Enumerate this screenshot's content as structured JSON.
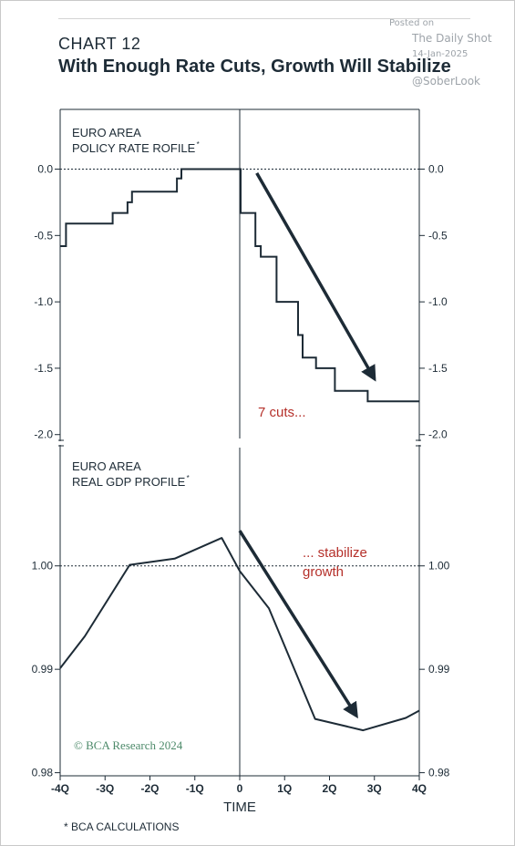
{
  "header": {
    "chart_number": "CHART 12",
    "title": "With Enough Rate Cuts, Growth Will Stabilize"
  },
  "watermark": {
    "posted": "Posted on",
    "source": "The Daily Shot",
    "date": "14-Jan-2025",
    "handle": "@SoberLook"
  },
  "footnote": "* BCA CALCULATIONS",
  "credit": "© BCA Research 2024",
  "colors": {
    "line": "#1d2b36",
    "annotation": "#b5302a",
    "credit": "#4d8a6a"
  },
  "chart_data": [
    {
      "type": "line",
      "panel_label": [
        "EURO AREA",
        "POLICY RATE ROFILE"
      ],
      "footnote_marker": "*",
      "xlabel": "TIME",
      "xlim": [
        -4,
        4
      ],
      "ylim": [
        -2.05,
        0.45
      ],
      "y_ticks": [
        0.0,
        -0.5,
        -1.0,
        -1.5,
        -2.0
      ],
      "y_tick_labels": [
        "0.0",
        "-0.5",
        "-1.0",
        "-1.5",
        "-2.0"
      ],
      "reference_line": 0.0,
      "series": [
        {
          "x": [
            -4.0,
            -3.87,
            -3.87,
            -2.83,
            -2.83,
            -2.5,
            -2.5,
            -2.4,
            -2.4,
            -1.4,
            -1.4,
            -1.3,
            -1.3,
            0.0,
            0.02,
            0.02,
            0.35,
            0.35,
            0.47,
            0.47,
            0.82,
            0.82,
            1.3,
            1.3,
            1.4,
            1.4,
            1.7,
            1.7,
            2.12,
            2.12,
            2.85,
            2.85,
            4.0
          ],
          "y": [
            -0.58,
            -0.58,
            -0.41,
            -0.41,
            -0.33,
            -0.33,
            -0.25,
            -0.25,
            -0.17,
            -0.17,
            -0.07,
            -0.07,
            0.0,
            0.0,
            0.0,
            -0.33,
            -0.33,
            -0.58,
            -0.58,
            -0.66,
            -0.66,
            -1.0,
            -1.0,
            -1.25,
            -1.25,
            -1.42,
            -1.42,
            -1.5,
            -1.5,
            -1.67,
            -1.67,
            -1.75,
            -1.75
          ]
        }
      ],
      "arrow": {
        "from": [
          0.38,
          -0.03
        ],
        "to": [
          3.0,
          -1.58
        ]
      },
      "annotation": "7 cuts..."
    },
    {
      "type": "line",
      "panel_label": [
        "EURO AREA",
        "REAL GDP PROFILE"
      ],
      "footnote_marker": "*",
      "xlabel": "TIME",
      "x_ticks": [
        -4,
        -3,
        -2,
        -1,
        0,
        1,
        2,
        3,
        4
      ],
      "x_tick_labels": [
        "-4Q",
        "-3Q",
        "-2Q",
        "-1Q",
        "0",
        "1Q",
        "2Q",
        "3Q",
        "4Q"
      ],
      "xlim": [
        -4,
        4
      ],
      "ylim": [
        0.9797,
        1.0117
      ],
      "y_ticks": [
        1.0,
        0.99,
        0.98
      ],
      "y_tick_labels": [
        "1.00",
        "0.99",
        "0.98"
      ],
      "reference_line": 1.0,
      "series": [
        {
          "x": [
            -4.0,
            -3.45,
            -2.45,
            -1.45,
            -0.4,
            0.0,
            0.65,
            1.68,
            2.75,
            3.7,
            4.0
          ],
          "y": [
            0.9901,
            0.9932,
            1.0001,
            1.0007,
            1.0027,
            0.9995,
            0.9959,
            0.9852,
            0.9841,
            0.9853,
            0.986
          ]
        }
      ],
      "arrow": {
        "from": [
          0.0,
          1.0034
        ],
        "to": [
          2.6,
          0.9855
        ]
      },
      "annotation": [
        "... stabilize",
        "growth"
      ]
    }
  ]
}
